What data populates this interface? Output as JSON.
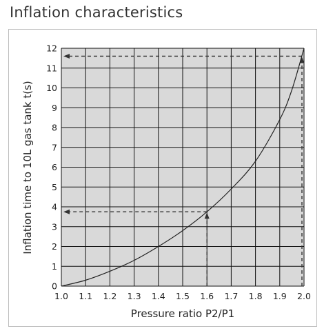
{
  "page": {
    "title": "Inflation characteristics"
  },
  "chart_data": {
    "type": "line",
    "title": "Inflation characteristics",
    "xlabel": "Pressure ratio P2/P1",
    "ylabel": "Inflation time to 10L gas tank t(s)",
    "xlim": [
      1.0,
      2.0
    ],
    "ylim": [
      0,
      12
    ],
    "x_ticks": [
      "1.0",
      "1.1",
      "1.2",
      "1.3",
      "1.4",
      "1.5",
      "1.6",
      "1.7",
      "1.8",
      "1.9",
      "2.0"
    ],
    "y_ticks": [
      "0",
      "1",
      "2",
      "3",
      "4",
      "5",
      "6",
      "7",
      "8",
      "9",
      "10",
      "11",
      "12"
    ],
    "grid": true,
    "series": [
      {
        "name": "",
        "x": [
          1.0,
          1.1,
          1.2,
          1.3,
          1.4,
          1.5,
          1.6,
          1.7,
          1.8,
          1.9,
          1.95,
          2.0
        ],
        "y": [
          0,
          0.3,
          0.75,
          1.3,
          2.0,
          2.8,
          3.75,
          4.9,
          6.3,
          8.4,
          9.9,
          12.0
        ]
      }
    ],
    "reference_lines": [
      {
        "x": 1.6,
        "y": 3.75
      },
      {
        "x": 2.0,
        "y": 11.6
      }
    ],
    "colors": {
      "plot_bg": "#d9d9d9",
      "grid": "#111111",
      "curve": "#222222",
      "guide": "#333333"
    }
  }
}
